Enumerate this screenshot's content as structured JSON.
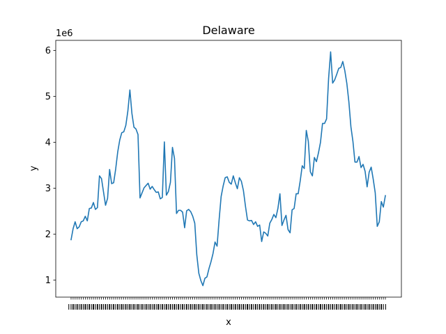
{
  "chart_data": {
    "type": "line",
    "title": "Delaware",
    "xlabel": "x",
    "ylabel": "y",
    "y_offset_label": "1e6",
    "yticks": [
      1,
      2,
      3,
      4,
      5,
      6
    ],
    "ylim": [
      0.63,
      6.22
    ],
    "grid": false,
    "legend": "none",
    "x_tick_labels_unreadable": "overlapping category labels along the x axis, one per point; first begins with W, last ends with 25",
    "series": [
      {
        "color": "#1f77b4",
        "values": [
          1.88,
          2.12,
          2.27,
          2.12,
          2.16,
          2.27,
          2.29,
          2.39,
          2.29,
          2.56,
          2.57,
          2.69,
          2.54,
          2.58,
          3.27,
          3.21,
          2.92,
          2.63,
          2.78,
          3.41,
          3.1,
          3.12,
          3.42,
          3.79,
          4.05,
          4.21,
          4.23,
          4.37,
          4.68,
          5.14,
          4.63,
          4.33,
          4.29,
          4.17,
          2.79,
          2.9,
          3.01,
          3.06,
          3.11,
          2.98,
          3.04,
          2.97,
          2.91,
          2.92,
          2.77,
          2.8,
          4.01,
          2.85,
          2.93,
          3.13,
          3.89,
          3.65,
          2.45,
          2.52,
          2.52,
          2.48,
          2.14,
          2.51,
          2.54,
          2.49,
          2.39,
          2.24,
          1.55,
          1.15,
          0.99,
          0.88,
          1.04,
          1.07,
          1.25,
          1.4,
          1.58,
          1.83,
          1.74,
          2.31,
          2.82,
          3.05,
          3.23,
          3.25,
          3.13,
          3.09,
          3.27,
          3.12,
          2.99,
          3.23,
          3.15,
          2.95,
          2.61,
          2.31,
          2.29,
          2.3,
          2.21,
          2.27,
          2.17,
          2.2,
          1.84,
          2.05,
          2.02,
          1.96,
          2.24,
          2.32,
          2.43,
          2.36,
          2.56,
          2.88,
          2.19,
          2.31,
          2.41,
          2.1,
          2.03,
          2.53,
          2.56,
          2.88,
          2.88,
          3.16,
          3.49,
          3.43,
          4.26,
          4.02,
          3.36,
          3.27,
          3.67,
          3.58,
          3.77,
          4.0,
          4.41,
          4.41,
          4.51,
          5.39,
          5.97,
          5.29,
          5.36,
          5.48,
          5.61,
          5.63,
          5.76,
          5.56,
          5.28,
          4.88,
          4.34,
          4.02,
          3.57,
          3.57,
          3.69,
          3.45,
          3.52,
          3.37,
          3.03,
          3.35,
          3.46,
          3.2,
          2.9,
          2.17,
          2.27,
          2.71,
          2.59,
          2.84
        ]
      }
    ]
  }
}
